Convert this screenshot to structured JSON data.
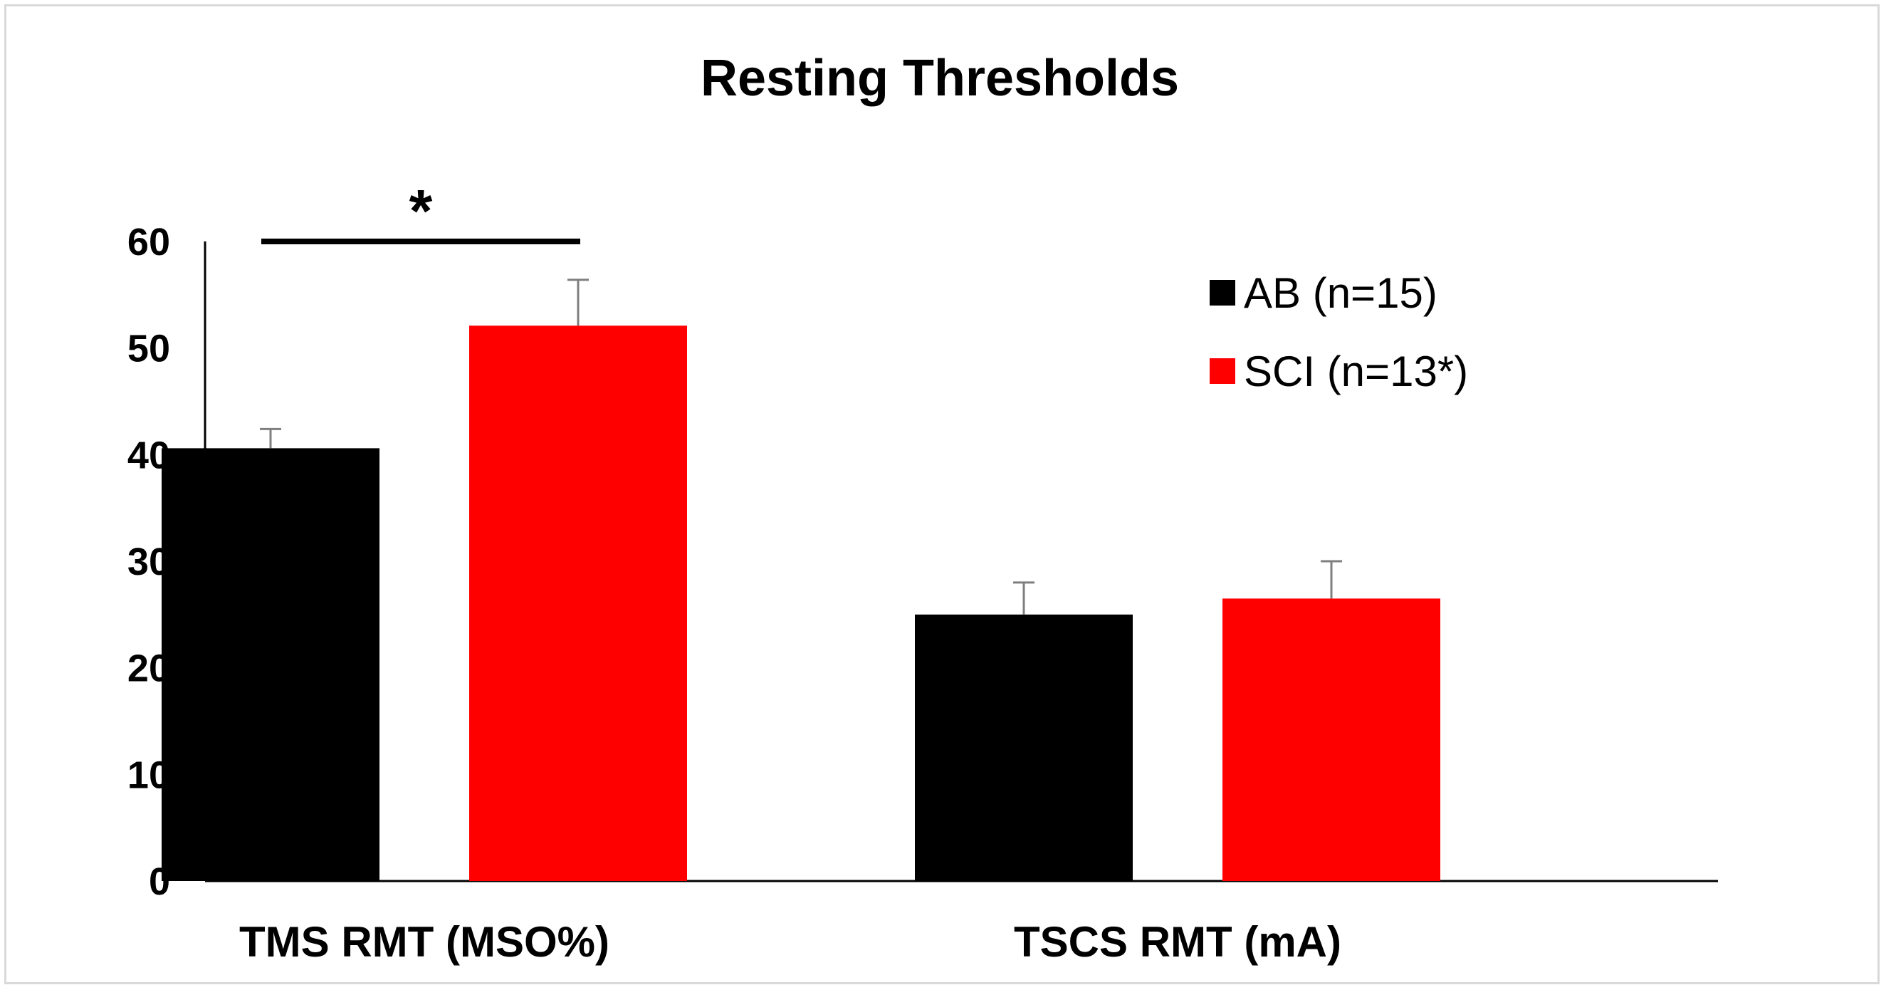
{
  "chart_data": {
    "type": "bar",
    "title": "Resting Thresholds",
    "categories": [
      "TMS RMT (MSO%)",
      "TSCS RMT (mA)"
    ],
    "series": [
      {
        "name": "AB (n=15)",
        "color": "#000000",
        "values": [
          40.6,
          25.0
        ],
        "errors": [
          1.8,
          3.0
        ]
      },
      {
        "name": "SCI (n=13*)",
        "color": "#ff0000",
        "values": [
          52.1,
          26.5
        ],
        "errors": [
          4.3,
          3.5
        ]
      }
    ],
    "yticks": [
      0,
      10,
      20,
      30,
      40,
      50,
      60
    ],
    "ylim": [
      0,
      60
    ],
    "xlabel": "",
    "ylabel": "",
    "legend_position": "top-right",
    "significance": {
      "label": "*",
      "category": "TMS RMT (MSO%)"
    }
  }
}
